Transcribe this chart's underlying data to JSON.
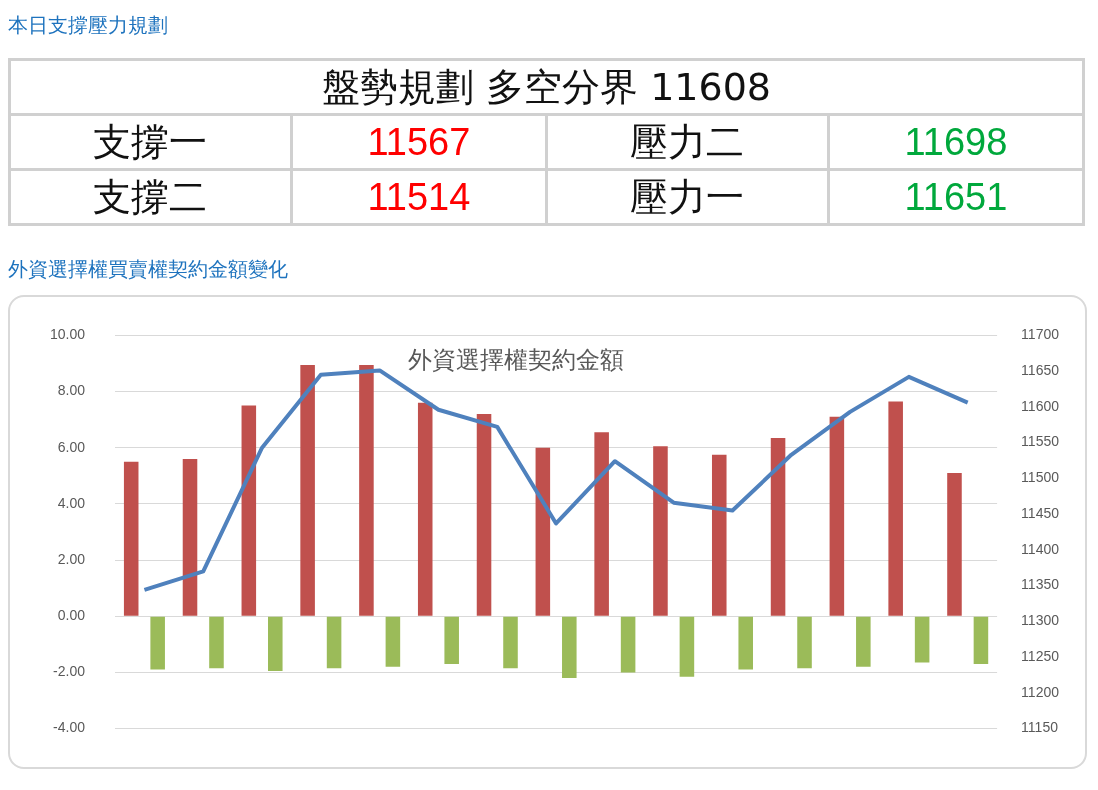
{
  "chart_data": [
    {
      "type": "other",
      "title": "本日支撐壓力規劃",
      "annotations": [
        "盤勢規劃 多空分界 11608",
        "支撐一",
        "11567",
        "壓力二",
        "11698",
        "支撐二",
        "11514",
        "壓力一",
        "11651"
      ]
    },
    {
      "type": "bar",
      "title": "外資選擇權買賣權契約金額變化",
      "subtitle": "外資選擇權契約金額",
      "categories": [
        null,
        null,
        null,
        null,
        null,
        null,
        null,
        null,
        null,
        null,
        null,
        null,
        null,
        null,
        null
      ],
      "series": [
        {
          "color": "#c0504d",
          "values": [
            5.5,
            5.6,
            7.5,
            8.95,
            8.95,
            7.6,
            7.2,
            6.0,
            6.55,
            6.05,
            5.75,
            6.35,
            7.1,
            7.65,
            5.1
          ]
        },
        {
          "color": "#9bbb59",
          "values": [
            -1.9,
            -1.85,
            -1.95,
            -1.85,
            -1.8,
            -1.7,
            -1.85,
            -2.2,
            -2.0,
            -2.15,
            -1.9,
            -1.85,
            -1.8,
            -1.65,
            -1.7
          ]
        },
        {
          "type": "line",
          "axis": "y2",
          "color": "#4f81bd",
          "values": [
            11344,
            11370,
            11543,
            11645,
            11651,
            11596,
            11572,
            11437,
            11524,
            11466,
            11455,
            11533,
            11593,
            11642,
            11606
          ]
        }
      ],
      "ylim": [
        -4,
        10
      ],
      "yticks": [
        {
          "value": 10,
          "label": "10.00"
        },
        {
          "value": 8,
          "label": "8.00"
        },
        {
          "value": 6,
          "label": "6.00"
        },
        {
          "value": 4,
          "label": "4.00"
        },
        {
          "value": 2,
          "label": "2.00"
        },
        {
          "value": 0,
          "label": "0.00"
        },
        {
          "value": -2,
          "label": "-2.00"
        },
        {
          "value": -4,
          "label": "-4.00"
        }
      ],
      "y2lim": [
        11150,
        11700
      ],
      "y2ticks": [
        11700,
        11650,
        11600,
        11550,
        11500,
        11450,
        11400,
        11350,
        11300,
        11250,
        11200,
        11150
      ],
      "grid": "y",
      "legend": false,
      "tick_labels": "y"
    }
  ]
}
